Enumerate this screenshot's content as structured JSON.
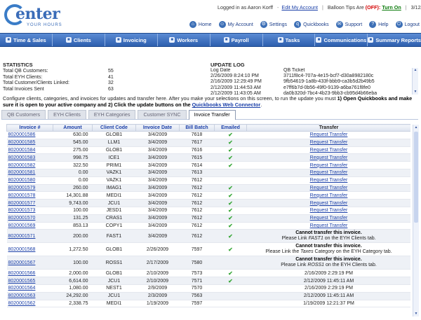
{
  "brand": {
    "word": "enter",
    "tag": "YOUR HOURS"
  },
  "top": {
    "logged_in": "Logged in as Aaron Korff",
    "edit_account": "Edit My Account",
    "balloon_label": "Balloon Tips Are",
    "balloon_state": "(OFF):",
    "turn_on": "Turn On",
    "date": "3/12/2009"
  },
  "iconbar": [
    {
      "label": "Home",
      "icon": "home-icon",
      "glyph": "⌂"
    },
    {
      "label": "My Account",
      "icon": "account-icon",
      "glyph": "☺"
    },
    {
      "label": "Settings",
      "icon": "gear-icon",
      "glyph": "⚙"
    },
    {
      "label": "Quickbooks",
      "icon": "quickbooks-icon",
      "glyph": "q"
    },
    {
      "label": "Support",
      "icon": "support-icon",
      "glyph": "✉"
    },
    {
      "label": "Help",
      "icon": "help-icon",
      "glyph": "?"
    },
    {
      "label": "Logout",
      "icon": "logout-icon",
      "glyph": "⏻"
    }
  ],
  "nav": [
    {
      "label": "Time & Sales",
      "icon": "clock-icon"
    },
    {
      "label": "Clients",
      "icon": "clients-icon"
    },
    {
      "label": "Invoicing",
      "icon": "invoice-icon"
    },
    {
      "label": "Workers",
      "icon": "workers-icon"
    },
    {
      "label": "Payroll",
      "icon": "payroll-icon"
    },
    {
      "label": "Tasks",
      "icon": "tasks-icon"
    },
    {
      "label": "Communications",
      "icon": "communications-icon"
    },
    {
      "label": "Summary Reports",
      "icon": "reports-icon"
    }
  ],
  "stats": {
    "title": "STATISTICS",
    "rows": [
      {
        "label": "Total QB Customers:",
        "value": "55"
      },
      {
        "label": "Total EYH Clients:",
        "value": "41"
      },
      {
        "label": "Total Customer/Clients Linked:",
        "value": "32"
      },
      {
        "label": "Total Invoices Sent",
        "value": "63"
      }
    ]
  },
  "log": {
    "title": "UPDATE LOG",
    "header": {
      "date": "Log Date",
      "ticket": "QB Ticket"
    },
    "rows": [
      {
        "date": "2/26/2009 8:24:10 PM",
        "ticket": "3711f8c4-707a-4e15-bcf7-d30a8982180c"
      },
      {
        "date": "2/16/2009 12:29:49 PM",
        "ticket": "9fb54619-1a8b-433f-bbb9-ca3b5d2b49b5"
      },
      {
        "date": "2/12/2009 11:44:53 AM",
        "ticket": "e7ff6b7d-0b56-49f0-9139-a6ba761f8fe0"
      },
      {
        "date": "2/12/2009 11:43:05 AM",
        "ticket": "da0b320d-7bc4-4b23-9bb3-cb95d4b66eba"
      }
    ]
  },
  "instructions": {
    "line1": "Configure clients, categories, and invoices for updates and transfer here. After you make your selections on this screen, to run the update you must",
    "bold1": "1) Open Quickbooks and make sure it is open to your active company and 2) Click the update buttons on the",
    "link": "Quickbooks Web Connector",
    "end": "."
  },
  "subtabs": [
    "QB Customers",
    "EYH Clients",
    "EYH Categories",
    "Customer SYNC",
    "Invoice Transfer"
  ],
  "table": {
    "columns": [
      "Invoice #",
      "Amount",
      "Client Code",
      "Invoice Date",
      "Bill Batch",
      "Emailed",
      "Transfer"
    ],
    "request_label": "Request Transfer",
    "rows": [
      {
        "inv": "8020001586",
        "amt": "630.00",
        "code": "GLOB1",
        "date": "3/4/2009",
        "batch": "7618",
        "emailed": true,
        "transfer": "Request Transfer"
      },
      {
        "inv": "8020001585",
        "amt": "545.00",
        "code": "LLM1",
        "date": "3/4/2009",
        "batch": "7617",
        "emailed": true,
        "transfer": "Request Transfer"
      },
      {
        "inv": "8020001584",
        "amt": "275.00",
        "code": "GLOB1",
        "date": "3/4/2009",
        "batch": "7616",
        "emailed": true,
        "transfer": "Request Transfer"
      },
      {
        "inv": "8020001583",
        "amt": "998.75",
        "code": "ICE1",
        "date": "3/4/2009",
        "batch": "7615",
        "emailed": true,
        "transfer": "Request Transfer"
      },
      {
        "inv": "8020001582",
        "amt": "322.50",
        "code": "PRIM1",
        "date": "3/4/2009",
        "batch": "7614",
        "emailed": true,
        "transfer": "Request Transfer"
      },
      {
        "inv": "8020001581",
        "amt": "0.00",
        "code": "VAZK1",
        "date": "3/4/2009",
        "batch": "7613",
        "emailed": false,
        "transfer": "Request Transfer"
      },
      {
        "inv": "8020001580",
        "amt": "0.00",
        "code": "VAZK1",
        "date": "3/4/2009",
        "batch": "7612",
        "emailed": false,
        "transfer": "Request Transfer"
      },
      {
        "inv": "8020001579",
        "amt": "260.00",
        "code": "IMAG1",
        "date": "3/4/2009",
        "batch": "7612",
        "emailed": true,
        "transfer": "Request Transfer"
      },
      {
        "inv": "8020001578",
        "amt": "14,301.88",
        "code": "MEDI1",
        "date": "3/4/2009",
        "batch": "7612",
        "emailed": true,
        "transfer": "Request Transfer"
      },
      {
        "inv": "8020001577",
        "amt": "9,743.00",
        "code": "JCU1",
        "date": "3/4/2009",
        "batch": "7612",
        "emailed": true,
        "transfer": "Request Transfer"
      },
      {
        "inv": "8020001573",
        "amt": "100.00",
        "code": "JESD1",
        "date": "3/4/2009",
        "batch": "7612",
        "emailed": true,
        "transfer": "Request Transfer"
      },
      {
        "inv": "8020001570",
        "amt": "131.25",
        "code": "CRAS1",
        "date": "3/4/2009",
        "batch": "7612",
        "emailed": true,
        "transfer": "Request Transfer"
      },
      {
        "inv": "8020001569",
        "amt": "853.13",
        "code": "COPY1",
        "date": "3/4/2009",
        "batch": "7612",
        "emailed": true,
        "transfer": "Request Transfer"
      },
      {
        "inv": "8020001571",
        "amt": "200.00",
        "code": "FAST1",
        "date": "3/4/2009",
        "batch": "7612",
        "emailed": true,
        "msg": {
          "head": "Cannot transfer this invoice.",
          "pre": "Please Link ",
          "it": "FAST1",
          "post": " on the EYH Clients tab."
        }
      },
      {
        "inv": "8020001568",
        "amt": "1,272.50",
        "code": "GLOB1",
        "date": "2/26/2009",
        "batch": "7597",
        "emailed": true,
        "msg": {
          "head": "Cannot transfer this invoice.",
          "pre": "Please Link the ",
          "it": "Taxes",
          "post": " Category on the EYH Category tab."
        }
      },
      {
        "inv": "8020001567",
        "amt": "100.00",
        "code": "ROSS1",
        "date": "2/17/2009",
        "batch": "7580",
        "emailed": false,
        "msg": {
          "head": "Cannot transfer this invoice.",
          "pre": "Please Link ",
          "it": "ROSS1",
          "post": " on the EYH Clients tab."
        }
      },
      {
        "inv": "8020001566",
        "amt": "2,000.00",
        "code": "GLOB1",
        "date": "2/10/2009",
        "batch": "7573",
        "emailed": true,
        "transfer": "2/16/2009 2:29:19 PM"
      },
      {
        "inv": "8020001565",
        "amt": "6,614.00",
        "code": "JCU1",
        "date": "2/10/2009",
        "batch": "7571",
        "emailed": true,
        "transfer": "2/12/2009 11:45:11 AM"
      },
      {
        "inv": "8020001564",
        "amt": "1,080.00",
        "code": "NEST1",
        "date": "2/9/2009",
        "batch": "7570",
        "emailed": false,
        "transfer": "2/16/2009 2:29:19 PM"
      },
      {
        "inv": "8020001563",
        "amt": "24,292.00",
        "code": "JCU1",
        "date": "2/3/2009",
        "batch": "7563",
        "emailed": false,
        "transfer": "2/12/2009 11:45:11 AM"
      },
      {
        "inv": "8020001562",
        "amt": "2,338.75",
        "code": "MEDI1",
        "date": "1/19/2009",
        "batch": "7597",
        "emailed": false,
        "transfer": "1/19/2009 12:21:37 PM"
      }
    ]
  },
  "colors": {
    "nav": "#3a6cb8",
    "link": "#1a3fa8",
    "check": "#3aa83a",
    "off": "#d40000",
    "turn_on": "#0a7a0a"
  }
}
